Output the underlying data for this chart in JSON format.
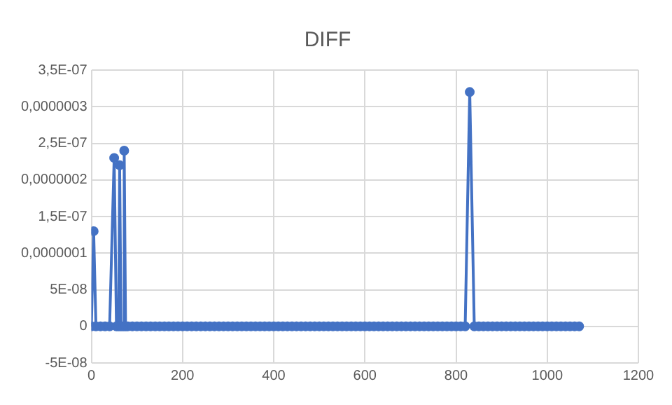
{
  "chart_data": {
    "type": "line",
    "title": "DIFF",
    "marker": "circle",
    "line_style": "solid",
    "grid": true,
    "legend": false,
    "x": [
      0,
      5,
      10,
      20,
      30,
      40,
      50,
      55,
      60,
      62,
      65,
      70,
      72,
      75,
      80,
      90,
      100,
      110,
      120,
      130,
      140,
      150,
      160,
      170,
      180,
      190,
      200,
      210,
      220,
      230,
      240,
      250,
      260,
      270,
      280,
      290,
      300,
      310,
      320,
      330,
      340,
      350,
      360,
      370,
      380,
      390,
      400,
      410,
      420,
      430,
      440,
      450,
      460,
      470,
      480,
      490,
      500,
      510,
      520,
      530,
      540,
      550,
      560,
      570,
      580,
      590,
      600,
      610,
      620,
      630,
      640,
      650,
      660,
      670,
      680,
      690,
      700,
      710,
      720,
      730,
      740,
      750,
      760,
      770,
      780,
      790,
      800,
      810,
      820,
      830,
      840,
      850,
      860,
      870,
      880,
      890,
      900,
      910,
      920,
      930,
      940,
      950,
      960,
      970,
      980,
      990,
      1000,
      1010,
      1020,
      1030,
      1040,
      1050,
      1060,
      1070
    ],
    "series": [
      {
        "color": "#4472c4",
        "values": [
          0,
          1.3e-07,
          0,
          0,
          0,
          0,
          2.3e-07,
          0,
          0,
          2.2e-07,
          0,
          0,
          2.4e-07,
          0,
          0,
          0,
          0,
          0,
          0,
          0,
          0,
          0,
          0,
          0,
          0,
          0,
          0,
          0,
          0,
          0,
          0,
          0,
          0,
          0,
          0,
          0,
          0,
          0,
          0,
          0,
          0,
          0,
          0,
          0,
          0,
          0,
          0,
          0,
          0,
          0,
          0,
          0,
          0,
          0,
          0,
          0,
          0,
          0,
          0,
          0,
          0,
          0,
          0,
          0,
          0,
          0,
          0,
          0,
          0,
          0,
          0,
          0,
          0,
          0,
          0,
          0,
          0,
          0,
          0,
          0,
          0,
          0,
          0,
          0,
          0,
          0,
          0,
          0,
          0,
          3.2e-07,
          0,
          0,
          0,
          0,
          0,
          0,
          0,
          0,
          0,
          0,
          0,
          0,
          0,
          0,
          0,
          0,
          0,
          0,
          0,
          0,
          0,
          0,
          0,
          0
        ]
      }
    ],
    "xlim": [
      0,
      1200
    ],
    "xticks": [
      0,
      200,
      400,
      600,
      800,
      1000,
      1200
    ],
    "ylim": [
      -5e-08,
      3.5e-07
    ],
    "yticks": [
      {
        "value": -5e-08,
        "label": "-5E-08"
      },
      0,
      {
        "value": 5e-08,
        "label": "5E-08"
      },
      {
        "value": 1e-07,
        "label": "0,0000001"
      },
      {
        "value": 1.5e-07,
        "label": "1,5E-07"
      },
      {
        "value": 2e-07,
        "label": "0,0000002"
      },
      {
        "value": 2.5e-07,
        "label": "2,5E-07"
      },
      {
        "value": 3e-07,
        "label": "0,0000003"
      },
      {
        "value": 3.5e-07,
        "label": "3,5E-07"
      }
    ]
  }
}
